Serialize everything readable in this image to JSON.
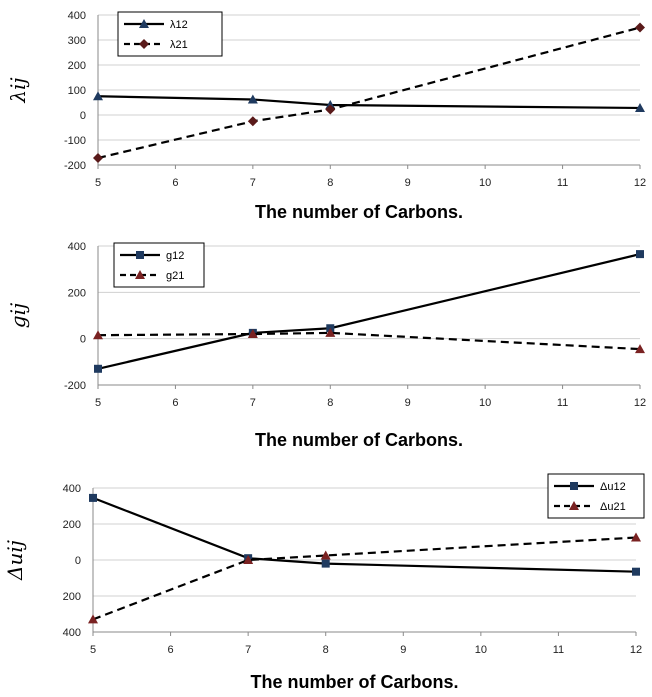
{
  "chart_data": [
    {
      "type": "line",
      "xlabel": "The number of Carbons.",
      "ylabel": "λij",
      "x_ticks": [
        "5",
        "6",
        "7",
        "8",
        "9",
        "10",
        "11",
        "12"
      ],
      "y_ticks": [
        "400",
        "300",
        "200",
        "100",
        "0",
        "-100",
        "-200"
      ],
      "xlim": [
        5,
        12
      ],
      "ylim": [
        -200,
        400
      ],
      "grid": "horizontal",
      "legend": "top-left",
      "series": [
        {
          "name": "λ12",
          "marker": "triangle",
          "dash": "solid",
          "color": "#1f3a5f",
          "x": [
            5,
            7,
            8,
            12
          ],
          "y": [
            75,
            62,
            40,
            28
          ]
        },
        {
          "name": "λ21",
          "marker": "diamond",
          "dash": "dashed",
          "color": "#5a1a1a",
          "x": [
            5,
            7,
            8,
            12
          ],
          "y": [
            -172,
            -25,
            22,
            350
          ]
        }
      ]
    },
    {
      "type": "line",
      "xlabel": "The number of Carbons.",
      "ylabel": "gij",
      "x_ticks": [
        "5",
        "6",
        "7",
        "8",
        "9",
        "10",
        "11",
        "12"
      ],
      "y_ticks": [
        "400",
        "200",
        "0",
        "-200"
      ],
      "xlim": [
        5,
        12
      ],
      "ylim": [
        -200,
        400
      ],
      "grid": "horizontal",
      "legend": "top-left",
      "series": [
        {
          "name": "g12",
          "marker": "square",
          "dash": "solid",
          "color": "#1f3a5f",
          "x": [
            5,
            7,
            8,
            12
          ],
          "y": [
            -130,
            25,
            45,
            365
          ]
        },
        {
          "name": "g21",
          "marker": "triangle",
          "dash": "dashed",
          "color": "#7a2222",
          "x": [
            5,
            7,
            8,
            12
          ],
          "y": [
            15,
            20,
            25,
            -45
          ]
        }
      ]
    },
    {
      "type": "line",
      "xlabel": "The number of Carbons.",
      "ylabel": "Δuij",
      "x_ticks": [
        "5",
        "6",
        "7",
        "8",
        "9",
        "10",
        "11",
        "12"
      ],
      "y_ticks": [
        "400",
        "200",
        "0",
        "200",
        "400"
      ],
      "xlim": [
        5,
        12
      ],
      "ylim": [
        -400,
        400
      ],
      "grid": "horizontal",
      "legend": "top-right",
      "series": [
        {
          "name": "Δu12",
          "marker": "square",
          "dash": "solid",
          "color": "#1f3a5f",
          "x": [
            5,
            7,
            8,
            12
          ],
          "y": [
            345,
            10,
            -20,
            -65
          ]
        },
        {
          "name": "Δu21",
          "marker": "triangle",
          "dash": "dashed",
          "color": "#7a2222",
          "x": [
            5,
            7,
            8,
            12
          ],
          "y": [
            -330,
            0,
            25,
            125
          ]
        }
      ]
    }
  ]
}
